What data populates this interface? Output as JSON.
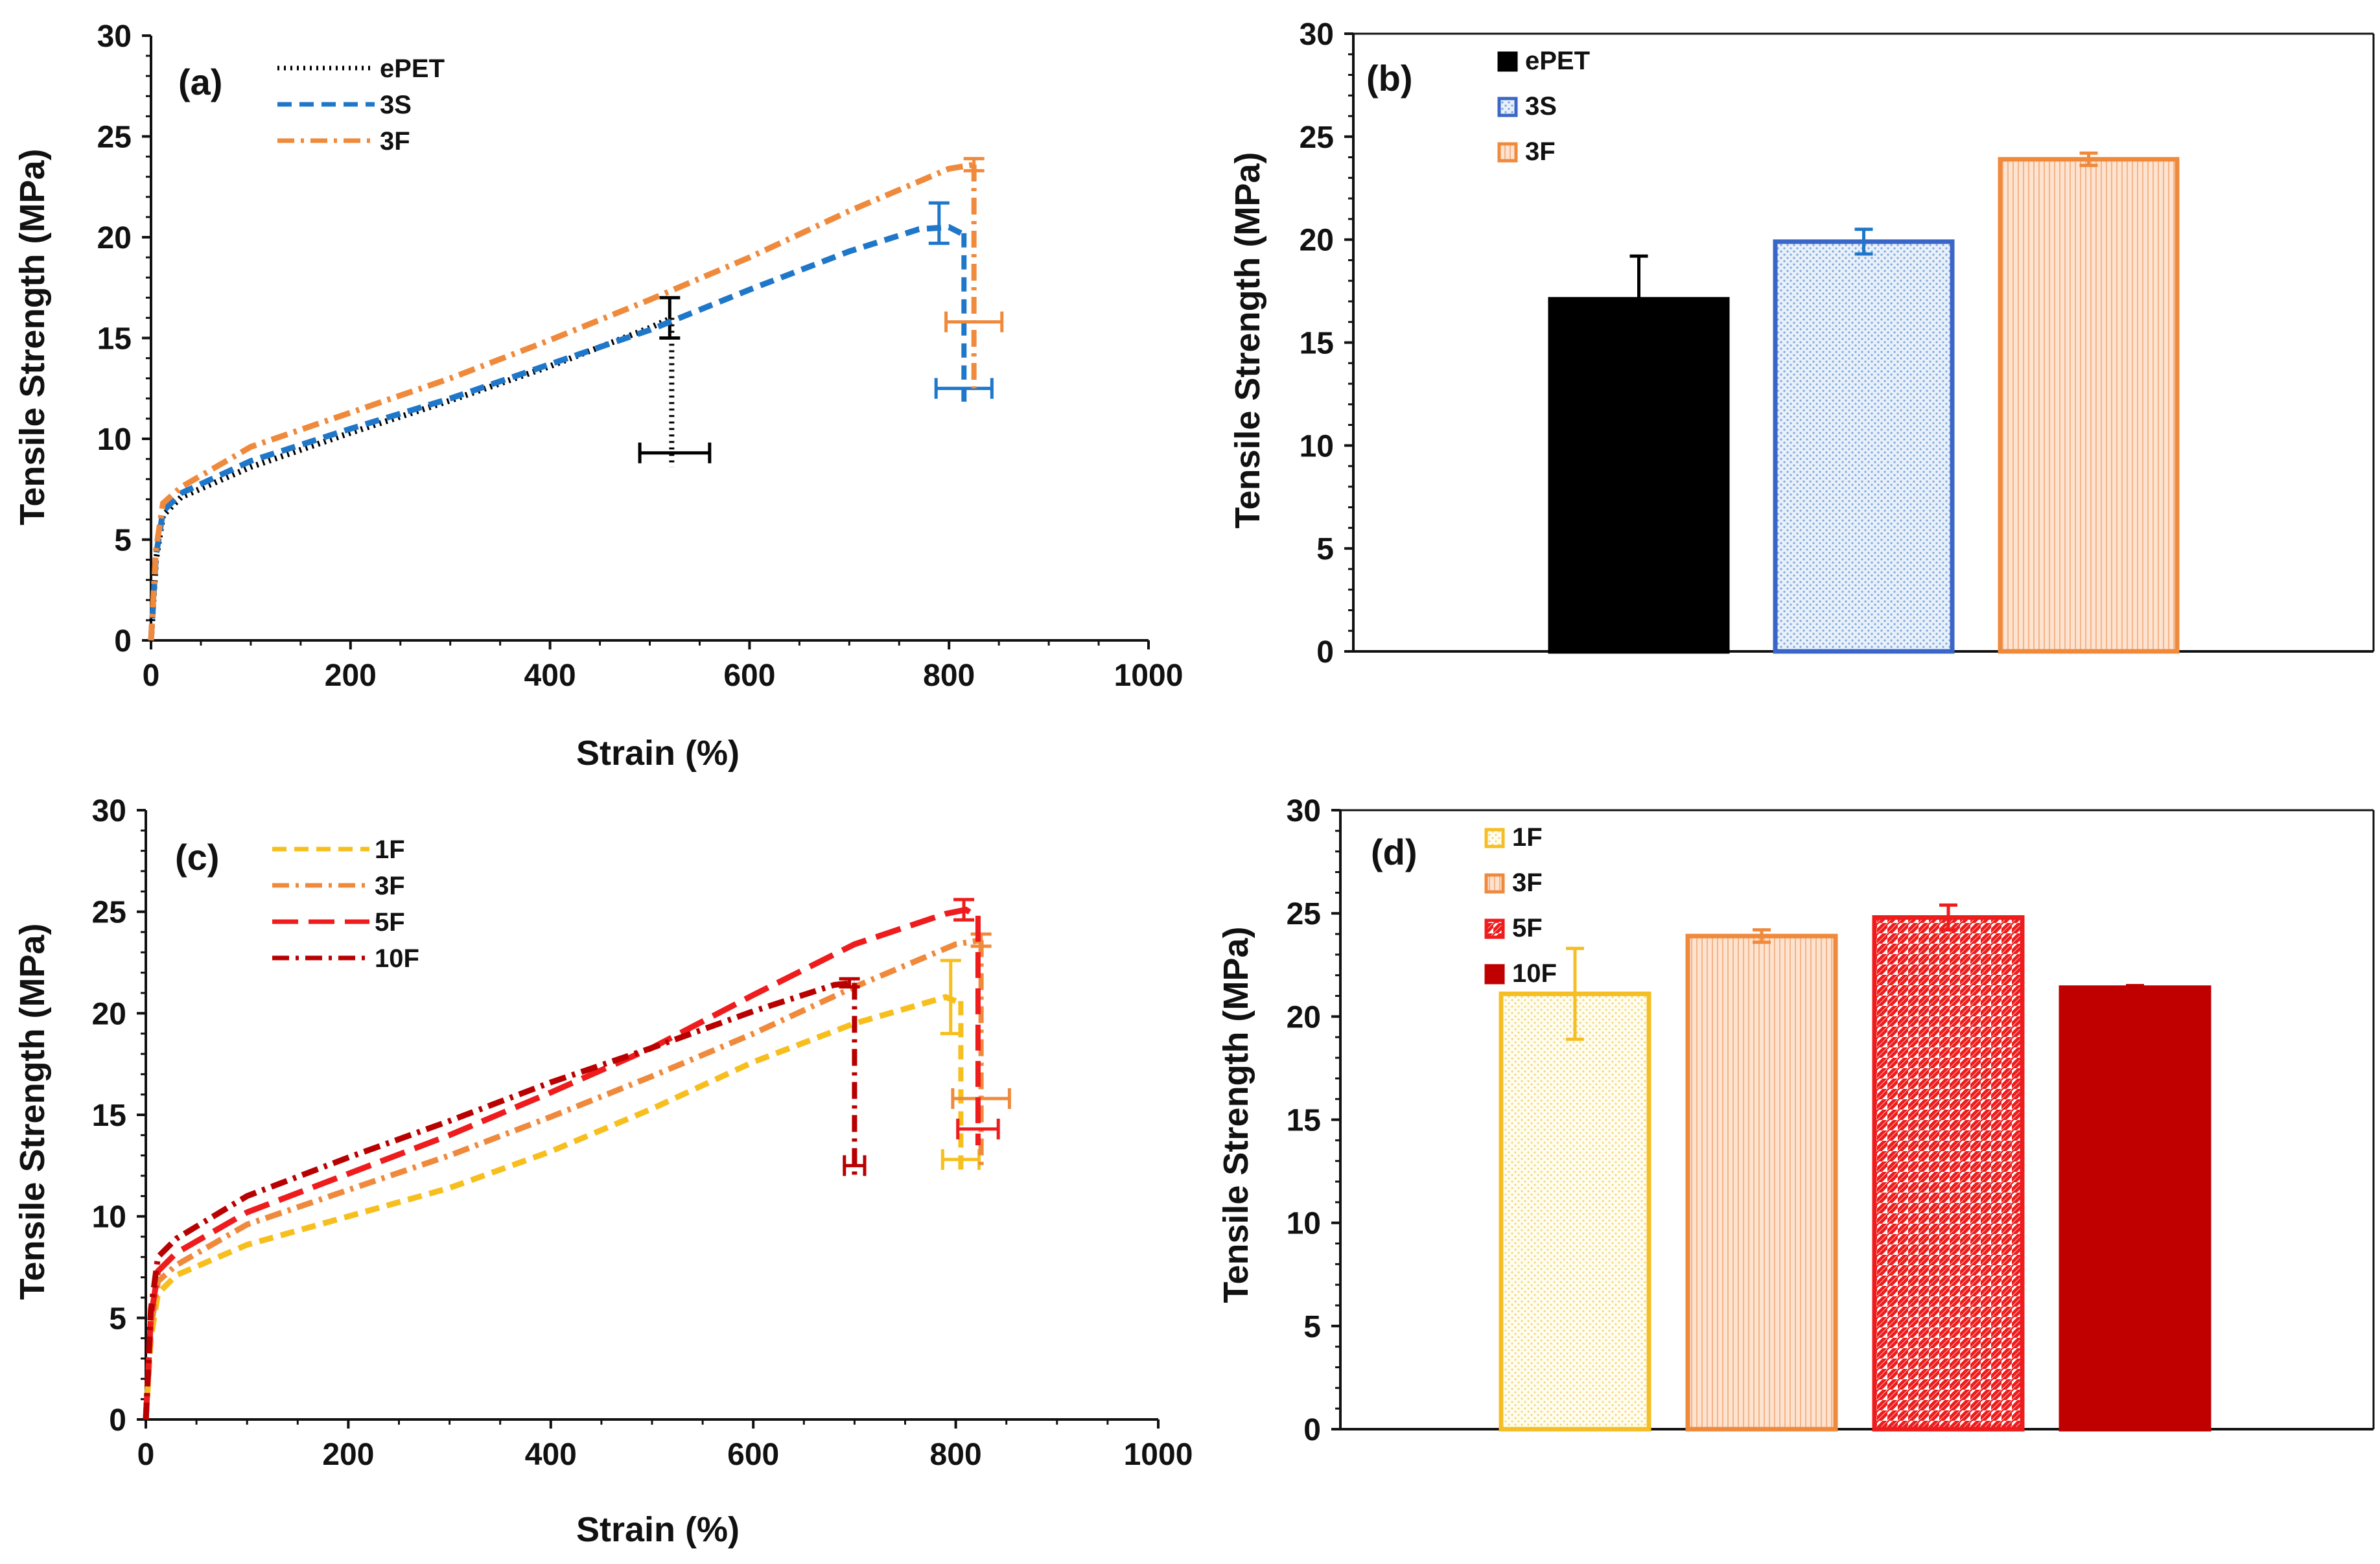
{
  "colors": {
    "epet": "#000000",
    "s3": "#1f77c9",
    "f3": "#ef8a3c",
    "f1": "#f7bf1e",
    "f5": "#ee1c1c",
    "f10": "#b80000",
    "axis": "#111111",
    "b_blue_edge": "#3a66c8",
    "d_1f_edge": "#f4be24",
    "d_5f_edge": "#ee1c1c",
    "d_10f_fill": "#c00000"
  },
  "chart_data": [
    {
      "id": "a",
      "type": "line",
      "panel_label": "(a)",
      "xlabel": "Strain (%)",
      "ylabel": "Tensile Strength (MPa)",
      "xlim": [
        0,
        1000
      ],
      "ylim": [
        0,
        30
      ],
      "xticks": [
        "0",
        "200",
        "400",
        "600",
        "800",
        "1000"
      ],
      "yticks": [
        "0",
        "5",
        "10",
        "15",
        "20",
        "25",
        "30"
      ],
      "legend_position": "top-left",
      "series": [
        {
          "name": "ePET",
          "color": "epet",
          "dash": "dotted",
          "points": [
            [
              0,
              0
            ],
            [
              5,
              4
            ],
            [
              12,
              6.2
            ],
            [
              30,
              7.1
            ],
            [
              100,
              8.6
            ],
            [
              200,
              10.3
            ],
            [
              300,
              11.9
            ],
            [
              400,
              13.6
            ],
            [
              500,
              15.5
            ],
            [
              522,
              16.0
            ]
          ],
          "drop": [
            522,
            16.0,
            8.6
          ],
          "errors": [
            {
              "x": 520,
              "y": 16.0,
              "yerr": 1.0
            },
            {
              "x": 525,
              "y": 9.3,
              "xerr": 35
            }
          ]
        },
        {
          "name": "3S",
          "color": "s3",
          "dash": "dashed",
          "points": [
            [
              0,
              0
            ],
            [
              5,
              4.2
            ],
            [
              12,
              6.4
            ],
            [
              30,
              7.3
            ],
            [
              100,
              8.9
            ],
            [
              200,
              10.5
            ],
            [
              300,
              12.0
            ],
            [
              400,
              13.7
            ],
            [
              500,
              15.4
            ],
            [
              600,
              17.4
            ],
            [
              700,
              19.3
            ],
            [
              770,
              20.4
            ],
            [
              800,
              20.5
            ],
            [
              812,
              20.2
            ]
          ],
          "drop": [
            815,
            20.2,
            11.5
          ],
          "errors": [
            {
              "x": 790,
              "y": 20.7,
              "yerr": 1.0
            },
            {
              "x": 815,
              "y": 12.5,
              "xerr": 28
            }
          ]
        },
        {
          "name": "3F",
          "color": "f3",
          "dash": "dashdot",
          "points": [
            [
              0,
              0
            ],
            [
              5,
              4.5
            ],
            [
              12,
              6.8
            ],
            [
              30,
              7.6
            ],
            [
              100,
              9.6
            ],
            [
              200,
              11.3
            ],
            [
              300,
              13.0
            ],
            [
              400,
              14.9
            ],
            [
              500,
              16.9
            ],
            [
              600,
              19.0
            ],
            [
              700,
              21.3
            ],
            [
              800,
              23.4
            ],
            [
              825,
              23.6
            ]
          ],
          "drop": [
            825,
            23.6,
            12.5
          ],
          "errors": [
            {
              "x": 825,
              "y": 23.6,
              "yerr": 0.3
            },
            {
              "x": 825,
              "y": 15.8,
              "xerr": 28
            }
          ]
        }
      ]
    },
    {
      "id": "b",
      "type": "bar",
      "panel_label": "(b)",
      "ylabel": "Tensile Strength (MPa)",
      "ylim": [
        0,
        30
      ],
      "yticks": [
        "0",
        "5",
        "10",
        "15",
        "20",
        "25",
        "30"
      ],
      "legend_position": "top-left",
      "categories": [
        "ePET",
        "3S",
        "3F"
      ],
      "values": [
        17.1,
        19.9,
        23.9
      ],
      "errors": [
        2.1,
        0.6,
        0.3
      ],
      "styles": [
        {
          "fill": "#000000",
          "edge": "#000000",
          "pattern": "none",
          "errcolor": "#000000"
        },
        {
          "fill": "#e4eef8",
          "edge": "b_blue_edge",
          "pattern": "dots",
          "errcolor": "#1f77c9"
        },
        {
          "fill": "#fde0cc",
          "edge": "f3",
          "pattern": "vlines",
          "errcolor": "#ef8a3c"
        }
      ]
    },
    {
      "id": "c",
      "type": "line",
      "panel_label": "(c)",
      "xlabel": "Strain (%)",
      "ylabel": "Tensile Strength (MPa)",
      "xlim": [
        0,
        1000
      ],
      "ylim": [
        0,
        30
      ],
      "xticks": [
        "0",
        "200",
        "400",
        "600",
        "800",
        "1000"
      ],
      "yticks": [
        "0",
        "5",
        "10",
        "15",
        "20",
        "25",
        "30"
      ],
      "legend_position": "top-left",
      "series": [
        {
          "name": "1F",
          "color": "f1",
          "dash": "dashed",
          "points": [
            [
              0,
              0
            ],
            [
              5,
              4.0
            ],
            [
              12,
              6.2
            ],
            [
              30,
              7.1
            ],
            [
              100,
              8.6
            ],
            [
              200,
              10.0
            ],
            [
              300,
              11.4
            ],
            [
              400,
              13.2
            ],
            [
              500,
              15.3
            ],
            [
              600,
              17.6
            ],
            [
              700,
              19.5
            ],
            [
              790,
              20.8
            ],
            [
              800,
              20.6
            ]
          ],
          "drop": [
            805,
            20.6,
            12.0
          ],
          "errors": [
            {
              "x": 795,
              "y": 20.8,
              "yerr": 1.8
            },
            {
              "x": 805,
              "y": 12.8,
              "xerr": 18
            }
          ]
        },
        {
          "name": "3F",
          "color": "f3",
          "dash": "dashdot",
          "points": [
            [
              0,
              0
            ],
            [
              5,
              4.5
            ],
            [
              12,
              6.8
            ],
            [
              30,
              7.6
            ],
            [
              100,
              9.6
            ],
            [
              200,
              11.3
            ],
            [
              300,
              13.0
            ],
            [
              400,
              14.9
            ],
            [
              500,
              16.9
            ],
            [
              600,
              19.0
            ],
            [
              700,
              21.3
            ],
            [
              800,
              23.4
            ],
            [
              825,
              23.6
            ]
          ],
          "drop": [
            825,
            23.6,
            12.5
          ],
          "errors": [
            {
              "x": 825,
              "y": 23.6,
              "yerr": 0.3
            },
            {
              "x": 825,
              "y": 15.8,
              "xerr": 28
            }
          ]
        },
        {
          "name": "5F",
          "color": "f5",
          "dash": "longdash",
          "points": [
            [
              0,
              0
            ],
            [
              5,
              5.0
            ],
            [
              12,
              7.3
            ],
            [
              30,
              8.2
            ],
            [
              100,
              10.2
            ],
            [
              200,
              12.1
            ],
            [
              300,
              14.0
            ],
            [
              400,
              16.1
            ],
            [
              500,
              18.3
            ],
            [
              600,
              20.9
            ],
            [
              700,
              23.4
            ],
            [
              790,
              24.9
            ],
            [
              810,
              25.1
            ],
            [
              820,
              24.8
            ]
          ],
          "drop": [
            822,
            24.8,
            13.5
          ],
          "errors": [
            {
              "x": 808,
              "y": 25.1,
              "yerr": 0.5
            },
            {
              "x": 822,
              "y": 14.3,
              "xerr": 20
            }
          ]
        },
        {
          "name": "10F",
          "color": "f10",
          "dash": "dashdot",
          "points": [
            [
              0,
              0
            ],
            [
              5,
              5.4
            ],
            [
              12,
              8.0
            ],
            [
              30,
              8.9
            ],
            [
              100,
              11.0
            ],
            [
              200,
              12.9
            ],
            [
              300,
              14.7
            ],
            [
              400,
              16.6
            ],
            [
              500,
              18.3
            ],
            [
              600,
              20.1
            ],
            [
              680,
              21.4
            ],
            [
              700,
              21.5
            ]
          ],
          "drop": [
            700,
            21.5,
            12.0
          ],
          "errors": [
            {
              "x": 695,
              "y": 21.5,
              "yerr": 0.2
            },
            {
              "x": 700,
              "y": 12.5,
              "xerr": 10
            }
          ]
        }
      ]
    },
    {
      "id": "d",
      "type": "bar",
      "panel_label": "(d)",
      "ylabel": "Tensile Strength (MPa)",
      "ylim": [
        0,
        30
      ],
      "yticks": [
        "0",
        "5",
        "10",
        "15",
        "20",
        "25",
        "30"
      ],
      "legend_position": "top-left",
      "categories": [
        "1F",
        "3F",
        "5F",
        "10F"
      ],
      "values": [
        21.1,
        23.9,
        24.8,
        21.4
      ],
      "errors": [
        2.2,
        0.3,
        0.6,
        0.1
      ],
      "styles": [
        {
          "fill": "#fffbea",
          "edge": "d_1f_edge",
          "pattern": "dots",
          "errcolor": "#f4be24"
        },
        {
          "fill": "#fde0cc",
          "edge": "f3",
          "pattern": "vlines",
          "errcolor": "#ef8a3c"
        },
        {
          "fill": "#ffffff",
          "edge": "d_5f_edge",
          "pattern": "diag",
          "errcolor": "#ee1c1c"
        },
        {
          "fill": "#c00000",
          "edge": "d_10f_fill",
          "pattern": "none",
          "errcolor": "#c00000"
        }
      ]
    }
  ]
}
